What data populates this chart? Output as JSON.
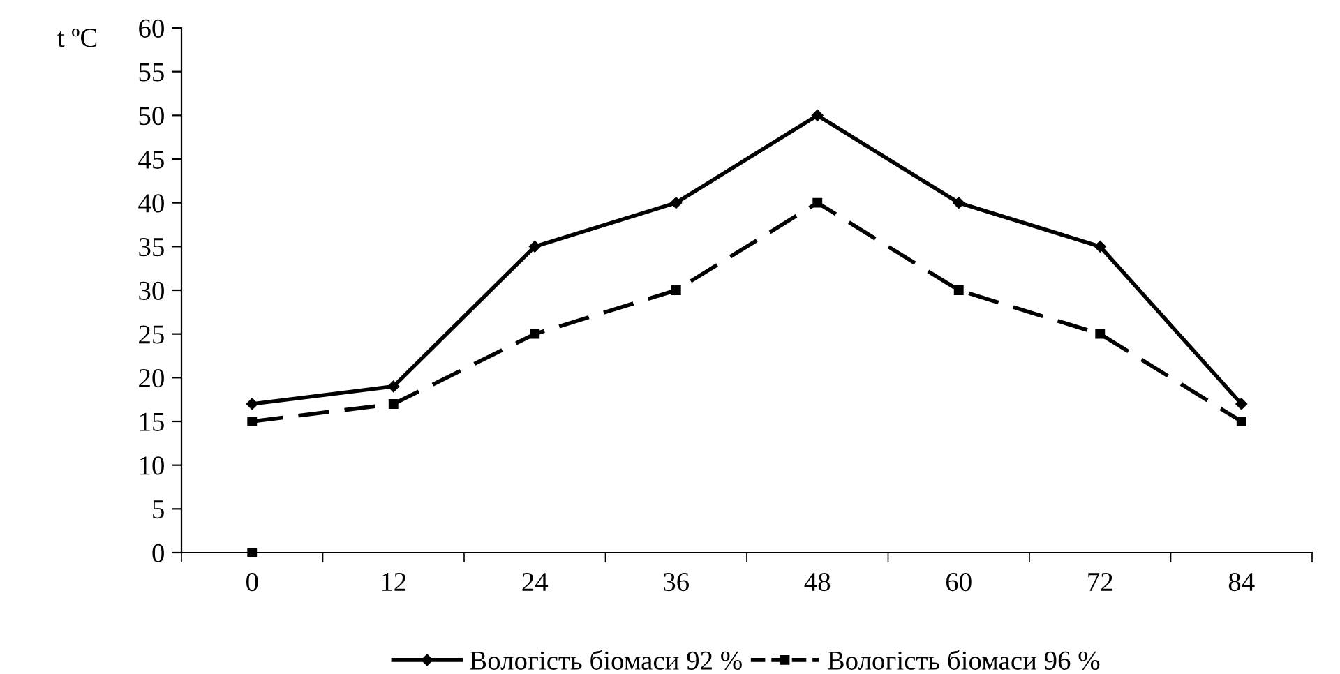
{
  "chart_data": {
    "type": "line",
    "ylabel": "t ºC",
    "categories": [
      "0",
      "12",
      "24",
      "36",
      "48",
      "60",
      "72",
      "84"
    ],
    "ylim": [
      0,
      60
    ],
    "yticks": [
      0,
      5,
      10,
      15,
      20,
      25,
      30,
      35,
      40,
      45,
      50,
      55,
      60
    ],
    "grid": false,
    "legend": "bottom",
    "series": [
      {
        "name": "Вологість біомаси 92 %",
        "color": "#000000",
        "marker": "diamond",
        "line_style": "solid",
        "values": [
          17,
          19,
          35,
          40,
          50,
          40,
          35,
          17
        ]
      },
      {
        "name": "Вологість біомаси 96 %",
        "color": "#000000",
        "marker": "square",
        "line_style": "dashed",
        "values": [
          15,
          17,
          25,
          30,
          40,
          30,
          25,
          15
        ]
      },
      {
        "type": "scatter",
        "color": "#000000",
        "marker": "square",
        "values": [
          0,
          null,
          null,
          null,
          null,
          null,
          null,
          null
        ]
      }
    ]
  }
}
